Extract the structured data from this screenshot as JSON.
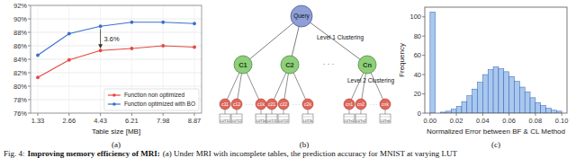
{
  "chart_data": [
    {
      "type": "line",
      "title": "(a)",
      "x_label": "Table size [MB]",
      "categories": [
        "1.33",
        "2.66",
        "4.43",
        "6.21",
        "7.98",
        "8.87"
      ],
      "series": [
        {
          "name": "Function non optimized",
          "color": "#e8473f",
          "marker": "circle",
          "values": [
            81.3,
            83.9,
            85.3,
            85.6,
            86.0,
            85.8
          ]
        },
        {
          "name": "Function optimized with BO",
          "color": "#3d6fc9",
          "marker": "circle",
          "values": [
            84.6,
            87.8,
            88.9,
            89.5,
            89.5,
            89.3
          ]
        }
      ],
      "ylim": [
        76,
        92
      ],
      "yticks": [
        {
          "value": 76,
          "label": "76%"
        },
        {
          "value": 78,
          "label": "78%"
        },
        {
          "value": 80,
          "label": "80%"
        },
        {
          "value": 82,
          "label": "82%"
        },
        {
          "value": 84,
          "label": "84%"
        },
        {
          "value": 86,
          "label": "86%"
        },
        {
          "value": 88,
          "label": "88%"
        },
        {
          "value": 90,
          "label": "90%"
        },
        {
          "value": 92,
          "label": "92%"
        }
      ],
      "grid": true,
      "legend": "lower right",
      "annotations": [
        {
          "text": "3.6%",
          "category": "4.43"
        }
      ]
    },
    {
      "type": "histogram",
      "title": "(c)",
      "x_label": "Normalized Error between BF & CL Method",
      "y_label": "Frequency",
      "bins": [
        0,
        0.004,
        0.008,
        0.012,
        0.016,
        0.02,
        0.024,
        0.028,
        0.032,
        0.036,
        0.04,
        0.044,
        0.048,
        0.052,
        0.056,
        0.06,
        0.064,
        0.068,
        0.072,
        0.076,
        0.08,
        0.084,
        0.088,
        0.092,
        0.096,
        0.1
      ],
      "counts": [
        105,
        0,
        1,
        2,
        4,
        7,
        12,
        18,
        25,
        32,
        40,
        45,
        48,
        46,
        43,
        38,
        33,
        27,
        22,
        16,
        11,
        8,
        5,
        3,
        2
      ],
      "color": "#a9c8ee",
      "xlim": [
        -0.004,
        0.104
      ],
      "xticks": [
        {
          "value": 0,
          "label": "0.00"
        },
        {
          "value": 0.02,
          "label": "0.02"
        },
        {
          "value": 0.04,
          "label": "0.04"
        },
        {
          "value": 0.06,
          "label": "0.06"
        },
        {
          "value": 0.08,
          "label": "0.08"
        },
        {
          "value": 0.1,
          "label": "0.10"
        }
      ],
      "ylim": [
        0,
        110
      ],
      "yticks": [
        0,
        20,
        40,
        60,
        80,
        100
      ],
      "grid": false
    }
  ],
  "diagram": {
    "title": "(b)",
    "root": "Query",
    "levels": [
      "Level 1 Clustering",
      "Level 2 Clustering"
    ],
    "ellipsis": "· · ·",
    "clusters": [
      {
        "label": "C1",
        "children": [
          {
            "label": "c11",
            "lut": "LUT11"
          },
          {
            "label": "c12",
            "lut": "LUT12"
          },
          {
            "label": "c1k",
            "lut": "LUT1k"
          }
        ]
      },
      {
        "label": "C2",
        "children": [
          {
            "label": "c21",
            "lut": "LUT21"
          },
          {
            "label": "c22",
            "lut": "LUT22"
          },
          {
            "label": "c2k",
            "lut": "LUT2k"
          }
        ]
      },
      {
        "label": "Cn",
        "children": [
          {
            "label": "cn1",
            "lut": "LUTn1"
          },
          {
            "label": "cn2",
            "lut": "LUTn2"
          },
          {
            "label": "cnk",
            "lut": "LUTnk"
          }
        ]
      }
    ]
  },
  "caption": {
    "label": "Fig. 4:",
    "heading": "Improving memory efficiency of MRI:",
    "text": "(a) Under MRI with incomplete tables, the prediction accuracy for MNIST at varying LUT"
  }
}
